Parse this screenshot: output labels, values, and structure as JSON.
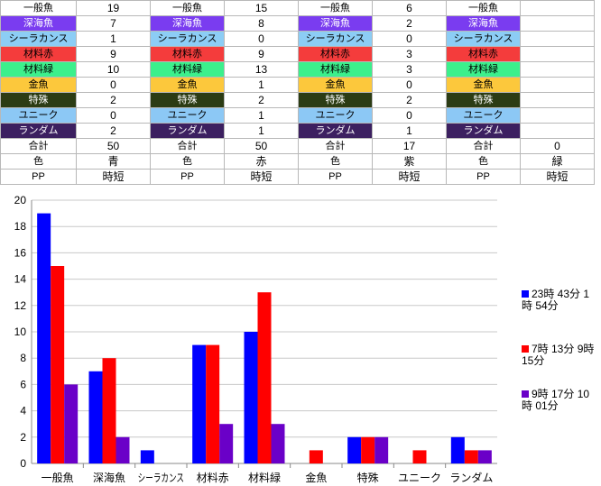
{
  "table": {
    "columns": [
      {
        "values": [
          "19",
          "7",
          "1",
          "9",
          "10",
          "0",
          "2",
          "0",
          "2",
          "50",
          "青",
          "時短"
        ]
      },
      {
        "values": [
          "15",
          "8",
          "0",
          "9",
          "13",
          "1",
          "2",
          "1",
          "1",
          "50",
          "赤",
          "時短"
        ]
      },
      {
        "values": [
          "6",
          "2",
          "0",
          "3",
          "3",
          "0",
          "2",
          "0",
          "1",
          "17",
          "紫",
          "時短"
        ]
      },
      {
        "values": [
          "",
          "",
          "",
          "",
          "",
          "",
          "",
          "",
          "",
          "0",
          "緑",
          "時短"
        ]
      }
    ],
    "row_labels": [
      "一般魚",
      "深海魚",
      "シーラカンス",
      "材料赤",
      "材料緑",
      "金魚",
      "特殊",
      "ユニーク",
      "ランダム",
      "合計",
      "色",
      "PP"
    ],
    "row_colors": [
      "#ffffff",
      "#7a3cf0",
      "#8ccdf5",
      "#f43c3c",
      "#3cf08c",
      "#fcc83c",
      "#2c3c14",
      "#8cc8f5",
      "#3c2060",
      "#ffffff",
      "#ffffff",
      "#ffffff"
    ],
    "row_text_colors": [
      "#000000",
      "#ffffff",
      "#000000",
      "#000000",
      "#000000",
      "#000000",
      "#ffffff",
      "#000000",
      "#ffffff",
      "#000000",
      "#000000",
      "#000000"
    ]
  },
  "chart_data": {
    "type": "bar",
    "categories": [
      "一般魚",
      "深海魚",
      "シーラカンス",
      "材料赤",
      "材料緑",
      "金魚",
      "特殊",
      "ユニーク",
      "ランダム"
    ],
    "series": [
      {
        "name": "23時 43分 1時 54分",
        "color": "#0000ff",
        "values": [
          19,
          7,
          1,
          9,
          10,
          0,
          2,
          0,
          2
        ]
      },
      {
        "name": "7時 13分 9時 15分",
        "color": "#ff0000",
        "values": [
          15,
          8,
          0,
          9,
          13,
          1,
          2,
          1,
          1
        ]
      },
      {
        "name": "9時 17分 10時 01分",
        "color": "#6a00c8",
        "values": [
          6,
          2,
          0,
          3,
          3,
          0,
          2,
          0,
          1
        ]
      }
    ],
    "ylim": [
      0,
      20
    ],
    "yticks": [
      0,
      2,
      4,
      6,
      8,
      10,
      12,
      14,
      16,
      18,
      20
    ],
    "grid": true,
    "legend_position": "right"
  }
}
